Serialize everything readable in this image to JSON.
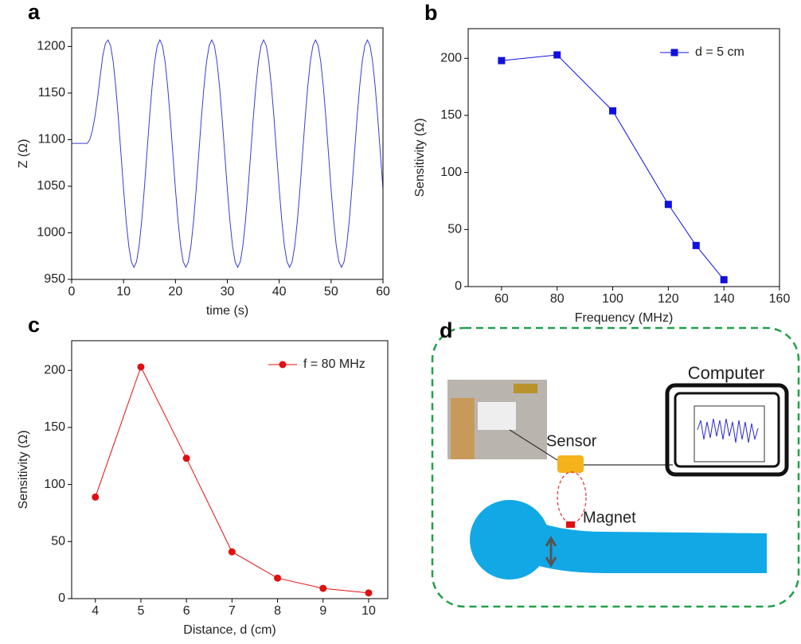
{
  "chart_data": [
    {
      "type": "line",
      "panel": "a",
      "xlabel": "time (s)",
      "ylabel": "Z (Ω)",
      "x": [
        0,
        0.5,
        1,
        1.5,
        2,
        2.5,
        3,
        3.5,
        4,
        4.5,
        5,
        5.5,
        6,
        6.5,
        7,
        7.5,
        8,
        8.5,
        9,
        9.5,
        10,
        10.5,
        11,
        11.5,
        12,
        12.5,
        13,
        13.5,
        14,
        14.5,
        15,
        15.5,
        16,
        16.5,
        17,
        17.5,
        18,
        18.5,
        19,
        19.5,
        20,
        20.5,
        21,
        21.5,
        22,
        22.5,
        23,
        23.5,
        24,
        24.5,
        25,
        25.5,
        26,
        26.5,
        27,
        27.5,
        28,
        28.5,
        29,
        29.5,
        30,
        30.5,
        31,
        31.5,
        32,
        32.5,
        33,
        33.5,
        34,
        34.5,
        35,
        35.5,
        36,
        36.5,
        37,
        37.5,
        38,
        38.5,
        39,
        39.5,
        40,
        40.5,
        41,
        41.5,
        42,
        42.5,
        43,
        43.5,
        44,
        44.5,
        45,
        45.5,
        46,
        46.5,
        47,
        47.5,
        48,
        48.5,
        49,
        49.5,
        50,
        50.5,
        51,
        51.5,
        52,
        52.5,
        53,
        53.5,
        54,
        54.5,
        55,
        55.5,
        56,
        56.5,
        57,
        57.5,
        58,
        58.5,
        59,
        59.5,
        60
      ],
      "series": [
        {
          "color": "#3b3bd4",
          "values": [
            1096,
            1096,
            1096,
            1096,
            1096,
            1096,
            1096,
            1100,
            1110,
            1125,
            1145,
            1168,
            1190,
            1203,
            1207,
            1201,
            1184,
            1157,
            1123,
            1085,
            1047,
            1013,
            986,
            969,
            963,
            969,
            986,
            1013,
            1047,
            1085,
            1123,
            1157,
            1184,
            1201,
            1207,
            1201,
            1184,
            1157,
            1123,
            1085,
            1047,
            1013,
            986,
            969,
            963,
            969,
            986,
            1013,
            1047,
            1085,
            1123,
            1157,
            1184,
            1201,
            1207,
            1201,
            1184,
            1157,
            1123,
            1085,
            1047,
            1013,
            986,
            969,
            963,
            969,
            986,
            1013,
            1047,
            1085,
            1123,
            1157,
            1184,
            1201,
            1207,
            1201,
            1184,
            1157,
            1123,
            1085,
            1047,
            1013,
            986,
            969,
            963,
            969,
            986,
            1013,
            1047,
            1085,
            1123,
            1157,
            1184,
            1201,
            1207,
            1201,
            1184,
            1157,
            1123,
            1085,
            1047,
            1013,
            986,
            969,
            963,
            969,
            986,
            1013,
            1047,
            1085,
            1123,
            1157,
            1184,
            1201,
            1207,
            1201,
            1184,
            1157,
            1123,
            1085,
            1047
          ]
        }
      ],
      "xlim": [
        0,
        60
      ],
      "xticks": [
        0,
        10,
        20,
        30,
        40,
        50,
        60
      ],
      "ylim": [
        950,
        1220
      ],
      "yticks": [
        950,
        1000,
        1050,
        1100,
        1150,
        1200
      ]
    },
    {
      "type": "line",
      "panel": "b",
      "xlabel": "Frequency (MHz)",
      "ylabel": "Sensitivity (Ω)",
      "x": [
        60,
        80,
        100,
        120,
        130,
        140
      ],
      "series": [
        {
          "name": "d = 5 cm",
          "color": "#1010e0",
          "marker": "square",
          "values": [
            198,
            203,
            154,
            72,
            36,
            6
          ]
        }
      ],
      "xlim": [
        48,
        160
      ],
      "xticks": [
        60,
        80,
        100,
        120,
        140,
        160
      ],
      "ylim": [
        0,
        226
      ],
      "yticks": [
        0,
        50,
        100,
        150,
        200
      ],
      "legend": "upper right"
    },
    {
      "type": "line",
      "panel": "c",
      "xlabel": "Distance, d (cm)",
      "ylabel": "Sensitivity (Ω)",
      "x": [
        4,
        5,
        6,
        7,
        8,
        9,
        10
      ],
      "series": [
        {
          "name": "f = 80 MHz",
          "color": "#e01010",
          "marker": "circle",
          "values": [
            89,
            203,
            123,
            41,
            18,
            9,
            5
          ]
        }
      ],
      "xlim": [
        3.48,
        10.42
      ],
      "xticks": [
        4,
        5,
        6,
        7,
        8,
        9,
        10
      ],
      "ylim": [
        0,
        226
      ],
      "yticks": [
        0,
        50,
        100,
        150,
        200
      ],
      "legend": "upper right"
    }
  ],
  "diagram": {
    "panel": "d",
    "computer": "Computer",
    "sensor": "Sensor",
    "magnet": "Magnet"
  }
}
